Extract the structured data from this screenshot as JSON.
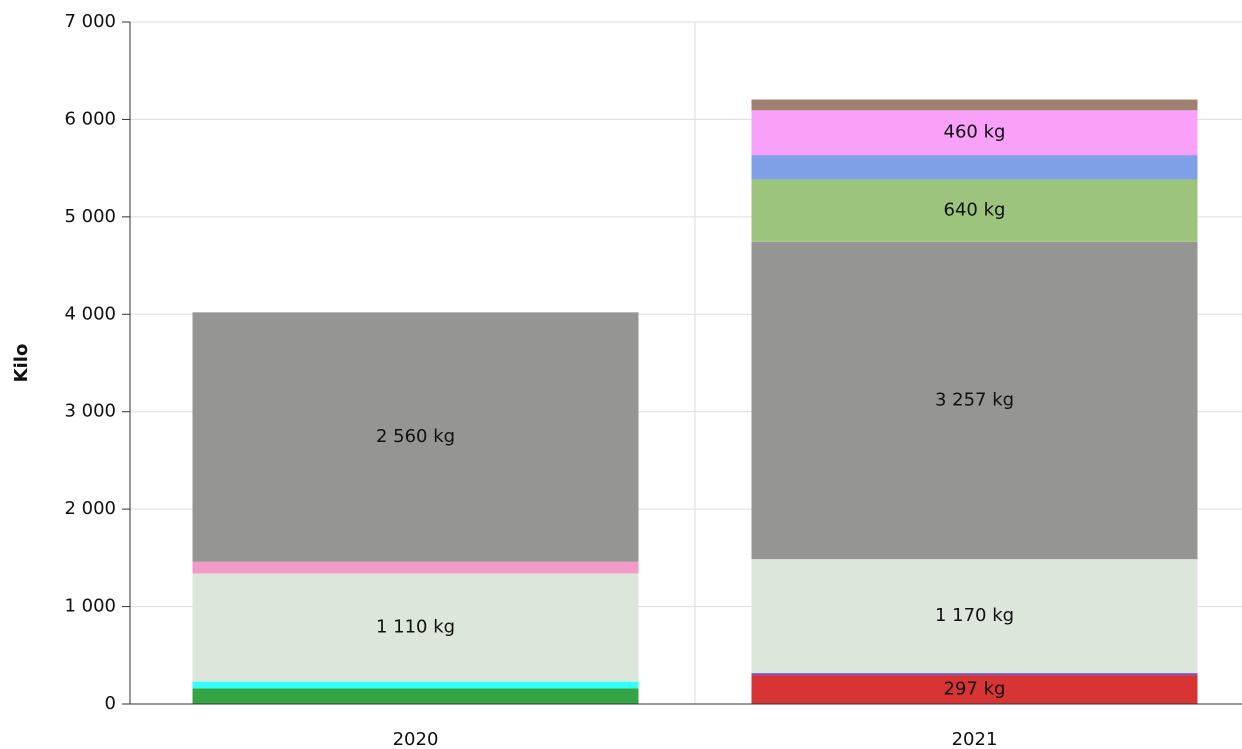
{
  "chart_data": {
    "type": "stacked_bar",
    "y_label": "Kilo",
    "categories": [
      "2020",
      "2021"
    ],
    "ylim": [
      0,
      7000
    ],
    "yticks": [
      0,
      {
        "value": 1000,
        "label": "1 000"
      },
      {
        "value": 2000,
        "label": "2 000"
      },
      {
        "value": 3000,
        "label": "3 000"
      },
      {
        "value": 4000,
        "label": "4 000"
      },
      {
        "value": 5000,
        "label": "5 000"
      },
      {
        "value": 6000,
        "label": "6 000"
      },
      {
        "value": 7000,
        "label": "7 000"
      }
    ],
    "grid": true,
    "series": [
      {
        "color": "#34a444",
        "values": [
          160,
          null
        ]
      },
      {
        "color": "#d93434",
        "values": [
          null,
          297
        ],
        "value_labels": [
          null,
          "297 kg"
        ]
      },
      {
        "color": "#33ffff",
        "values": [
          70,
          null
        ]
      },
      {
        "color": "#6a5acd",
        "values": [
          null,
          20
        ]
      },
      {
        "color": "#dce6da",
        "values": [
          1110,
          1170
        ],
        "value_labels": [
          "1 110 kg",
          "1 170 kg"
        ]
      },
      {
        "color": "#f49ac8",
        "values": [
          120,
          null
        ]
      },
      {
        "color": "#959593",
        "values": [
          2560,
          3257
        ],
        "value_labels": [
          "2 560 kg",
          "3 257 kg"
        ]
      },
      {
        "color": "#9cc47c",
        "values": [
          null,
          640
        ],
        "value_labels": [
          null,
          "640 kg"
        ]
      },
      {
        "color": "#7fa0e6",
        "values": [
          null,
          250
        ]
      },
      {
        "color": "#f9a0f9",
        "values": [
          null,
          460
        ],
        "value_labels": [
          null,
          "460 kg"
        ]
      },
      {
        "color": "#a0806e",
        "values": [
          null,
          110
        ]
      }
    ]
  }
}
